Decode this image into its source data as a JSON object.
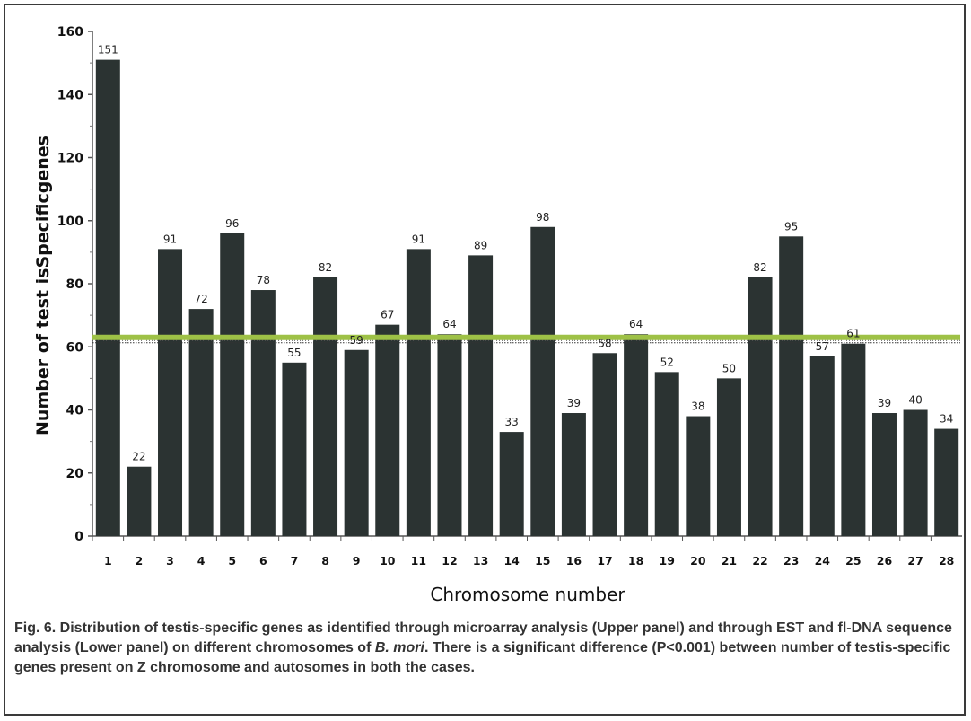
{
  "chart_data": {
    "type": "bar",
    "categories": [
      "1",
      "2",
      "3",
      "4",
      "5",
      "6",
      "7",
      "8",
      "9",
      "10",
      "11",
      "12",
      "13",
      "14",
      "15",
      "16",
      "17",
      "18",
      "19",
      "20",
      "21",
      "22",
      "23",
      "24",
      "25",
      "26",
      "27",
      "28"
    ],
    "values": [
      151,
      22,
      91,
      72,
      96,
      78,
      55,
      82,
      59,
      67,
      91,
      64,
      89,
      33,
      98,
      39,
      58,
      64,
      52,
      38,
      50,
      82,
      95,
      57,
      61,
      39,
      40,
      34
    ],
    "title": "",
    "xlabel": "Chromosome number",
    "ylabel": "Number of test isSpecificgenes",
    "ylim": [
      0,
      160
    ],
    "yticks": [
      0,
      20,
      40,
      60,
      80,
      100,
      120,
      140,
      160
    ],
    "reference_line": {
      "value": 63,
      "color": "#9ec146"
    },
    "bar_color": "#2b3332",
    "grid": false
  },
  "caption": {
    "fig_label": "Fig. 6.",
    "text_before_species": " Distribution of testis-specific genes as identified through microarray analysis (Upper panel) and through EST and fl-DNA sequence analysis (Lower panel) on different chromosomes of ",
    "species": "B. mori",
    "text_after_species": ". There is a significant difference (P<0.001) between number of testis-specific genes present on Z chromosome and autosomes in both the cases."
  }
}
